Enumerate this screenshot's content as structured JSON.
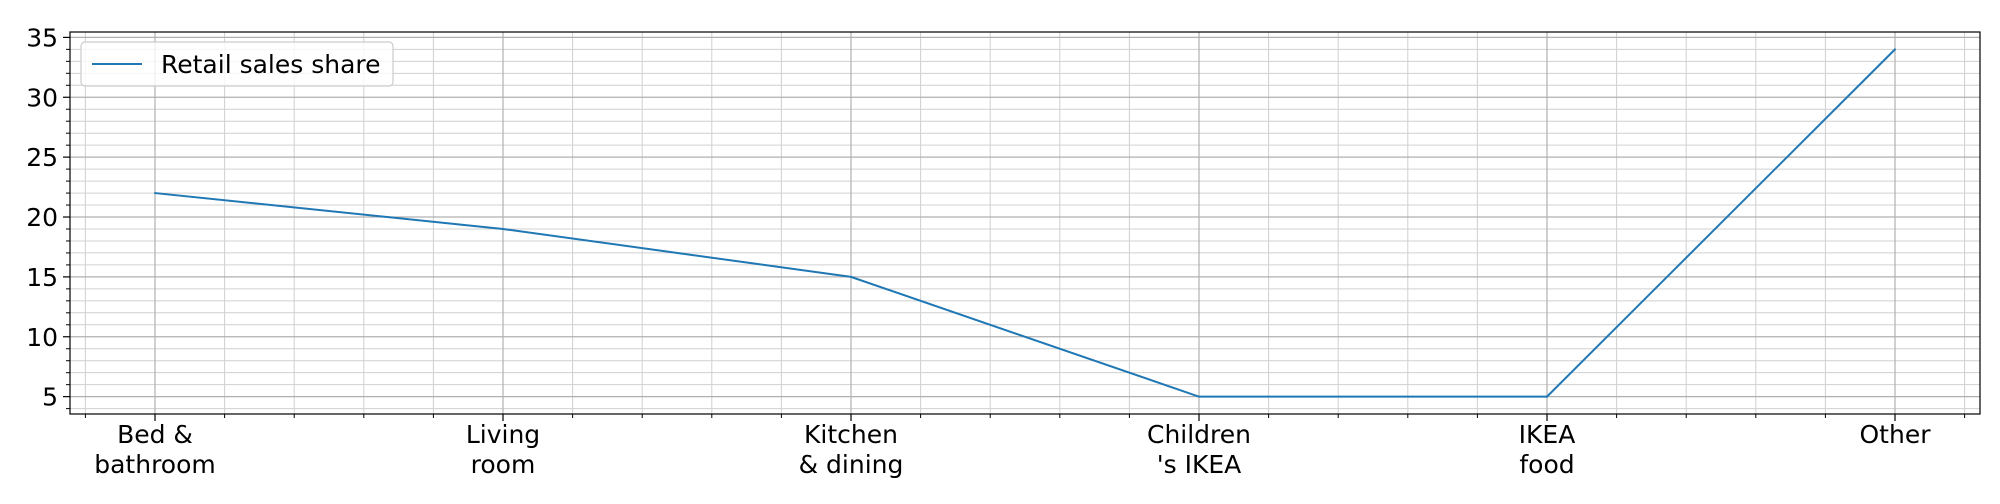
{
  "colors": {
    "series": "#1f77b4",
    "grid_major": "#b0b0b0",
    "grid_minor": "#d0d0d0",
    "axis": "#000000",
    "background": "#ffffff"
  },
  "chart_data": {
    "type": "line",
    "title": "",
    "xlabel": "",
    "ylabel": "",
    "categories": [
      [
        "Bed &",
        "bathroom"
      ],
      [
        "Living",
        "room"
      ],
      [
        "Kitchen",
        "& dining"
      ],
      [
        "Children",
        "'s IKEA"
      ],
      [
        "IKEA",
        "food"
      ],
      [
        "Other"
      ]
    ],
    "series": [
      {
        "name": "Retail sales share",
        "values": [
          22,
          19,
          15,
          5,
          5,
          34
        ]
      }
    ],
    "ylim": [
      3.55,
      35.45
    ],
    "yticks": [
      5,
      10,
      15,
      20,
      25,
      30,
      35
    ],
    "y_minor_step": 1,
    "x_minor_per_major": 5,
    "grid": true,
    "grid_minor": true,
    "legend": "upper-left"
  }
}
